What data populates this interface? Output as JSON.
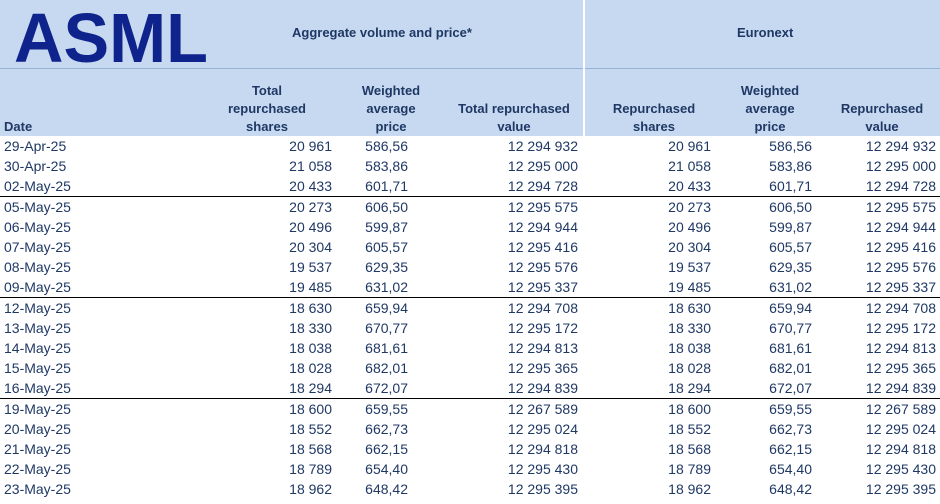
{
  "header": {
    "logo_text": "ASML",
    "group_aggregate": "Aggregate volume and price*",
    "group_euronext": "Euronext",
    "columns": {
      "date": "Date",
      "total_shares": [
        "Total",
        "repurchased",
        "shares"
      ],
      "wavg_price": [
        "Weighted",
        "average",
        "price"
      ],
      "total_value": [
        "Total repurchased",
        "value"
      ],
      "eur_shares": [
        "Repurchased",
        "shares"
      ],
      "eur_price": [
        "Weighted",
        "average",
        "price"
      ],
      "eur_value": [
        "Repurchased",
        "value"
      ]
    }
  },
  "colors": {
    "header_bg": "#c6d9f1",
    "text": "#1f3864",
    "logo": "#0f238c"
  },
  "rows": [
    {
      "date": "29-Apr-25",
      "shares": "20 961",
      "price": "586,56",
      "value": "12 294 932",
      "eur_shares": "20 961",
      "eur_price": "586,56",
      "eur_value": "12 294 932"
    },
    {
      "date": "30-Apr-25",
      "shares": "21 058",
      "price": "583,86",
      "value": "12 295 000",
      "eur_shares": "21 058",
      "eur_price": "583,86",
      "eur_value": "12 295 000"
    },
    {
      "date": "02-May-25",
      "shares": "20 433",
      "price": "601,71",
      "value": "12 294 728",
      "eur_shares": "20 433",
      "eur_price": "601,71",
      "eur_value": "12 294 728"
    },
    {
      "date": "05-May-25",
      "shares": "20 273",
      "price": "606,50",
      "value": "12 295 575",
      "eur_shares": "20 273",
      "eur_price": "606,50",
      "eur_value": "12 295 575"
    },
    {
      "date": "06-May-25",
      "shares": "20 496",
      "price": "599,87",
      "value": "12 294 944",
      "eur_shares": "20 496",
      "eur_price": "599,87",
      "eur_value": "12 294 944"
    },
    {
      "date": "07-May-25",
      "shares": "20 304",
      "price": "605,57",
      "value": "12 295 416",
      "eur_shares": "20 304",
      "eur_price": "605,57",
      "eur_value": "12 295 416"
    },
    {
      "date": "08-May-25",
      "shares": "19 537",
      "price": "629,35",
      "value": "12 295 576",
      "eur_shares": "19 537",
      "eur_price": "629,35",
      "eur_value": "12 295 576"
    },
    {
      "date": "09-May-25",
      "shares": "19 485",
      "price": "631,02",
      "value": "12 295 337",
      "eur_shares": "19 485",
      "eur_price": "631,02",
      "eur_value": "12 295 337"
    },
    {
      "date": "12-May-25",
      "shares": "18 630",
      "price": "659,94",
      "value": "12 294 708",
      "eur_shares": "18 630",
      "eur_price": "659,94",
      "eur_value": "12 294 708"
    },
    {
      "date": "13-May-25",
      "shares": "18 330",
      "price": "670,77",
      "value": "12 295 172",
      "eur_shares": "18 330",
      "eur_price": "670,77",
      "eur_value": "12 295 172"
    },
    {
      "date": "14-May-25",
      "shares": "18 038",
      "price": "681,61",
      "value": "12 294 813",
      "eur_shares": "18 038",
      "eur_price": "681,61",
      "eur_value": "12 294 813"
    },
    {
      "date": "15-May-25",
      "shares": "18 028",
      "price": "682,01",
      "value": "12 295 365",
      "eur_shares": "18 028",
      "eur_price": "682,01",
      "eur_value": "12 295 365"
    },
    {
      "date": "16-May-25",
      "shares": "18 294",
      "price": "672,07",
      "value": "12 294 839",
      "eur_shares": "18 294",
      "eur_price": "672,07",
      "eur_value": "12 294 839"
    },
    {
      "date": "19-May-25",
      "shares": "18 600",
      "price": "659,55",
      "value": "12 267 589",
      "eur_shares": "18 600",
      "eur_price": "659,55",
      "eur_value": "12 267 589"
    },
    {
      "date": "20-May-25",
      "shares": "18 552",
      "price": "662,73",
      "value": "12 295 024",
      "eur_shares": "18 552",
      "eur_price": "662,73",
      "eur_value": "12 295 024"
    },
    {
      "date": "21-May-25",
      "shares": "18 568",
      "price": "662,15",
      "value": "12 294 818",
      "eur_shares": "18 568",
      "eur_price": "662,15",
      "eur_value": "12 294 818"
    },
    {
      "date": "22-May-25",
      "shares": "18 789",
      "price": "654,40",
      "value": "12 295 430",
      "eur_shares": "18 789",
      "eur_price": "654,40",
      "eur_value": "12 295 430"
    },
    {
      "date": "23-May-25",
      "shares": "18 962",
      "price": "648,42",
      "value": "12 295 395",
      "eur_shares": "18 962",
      "eur_price": "648,42",
      "eur_value": "12 295 395"
    }
  ]
}
